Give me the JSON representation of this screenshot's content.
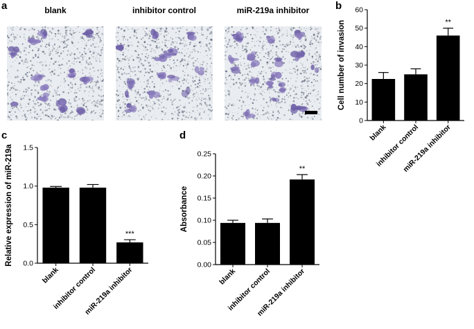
{
  "panels": {
    "a": {
      "letter": "a",
      "images": [
        {
          "label": "blank",
          "density": "medium"
        },
        {
          "label": "inhibitor control",
          "density": "medium"
        },
        {
          "label": "miR-219a  inhibitor",
          "density": "high"
        }
      ]
    },
    "b": {
      "letter": "b"
    },
    "c": {
      "letter": "c"
    },
    "d": {
      "letter": "d"
    }
  },
  "chart_data": [
    {
      "type": "bar",
      "panel": "b",
      "categories": [
        "blank",
        "inhibitor control",
        "miR-219a  inhibitor"
      ],
      "values": [
        22.5,
        25,
        46
      ],
      "errors": [
        3.5,
        3,
        4
      ],
      "significance": [
        "",
        "",
        "**"
      ],
      "ylabel": "Cell number of invasion",
      "ylim": [
        0,
        60
      ],
      "yticks": [
        "0",
        "10",
        "20",
        "30",
        "40",
        "50",
        "60"
      ],
      "bar_color": "#000000"
    },
    {
      "type": "bar",
      "panel": "c",
      "categories": [
        "blank",
        "inhibitor control",
        "miR-219a  inhibitor"
      ],
      "values": [
        0.98,
        0.98,
        0.27
      ],
      "errors": [
        0.015,
        0.04,
        0.035
      ],
      "significance": [
        "",
        "",
        "***"
      ],
      "ylabel": "Relative  expression of miR-219a",
      "ylim": [
        0,
        1.5
      ],
      "yticks": [
        "0.0",
        "0.5",
        "1.0",
        "1.5"
      ],
      "bar_color": "#000000"
    },
    {
      "type": "bar",
      "panel": "d",
      "categories": [
        "blank",
        "inhibitor control",
        "miR-219a  inhibitor"
      ],
      "values": [
        0.094,
        0.094,
        0.192
      ],
      "errors": [
        0.006,
        0.009,
        0.011
      ],
      "significance": [
        "",
        "",
        "**"
      ],
      "ylabel": "Absorbance",
      "ylim": [
        0,
        0.25
      ],
      "yticks": [
        "0.00",
        "0.05",
        "0.10",
        "0.15",
        "0.20",
        "0.25"
      ],
      "bar_color": "#000000"
    }
  ]
}
